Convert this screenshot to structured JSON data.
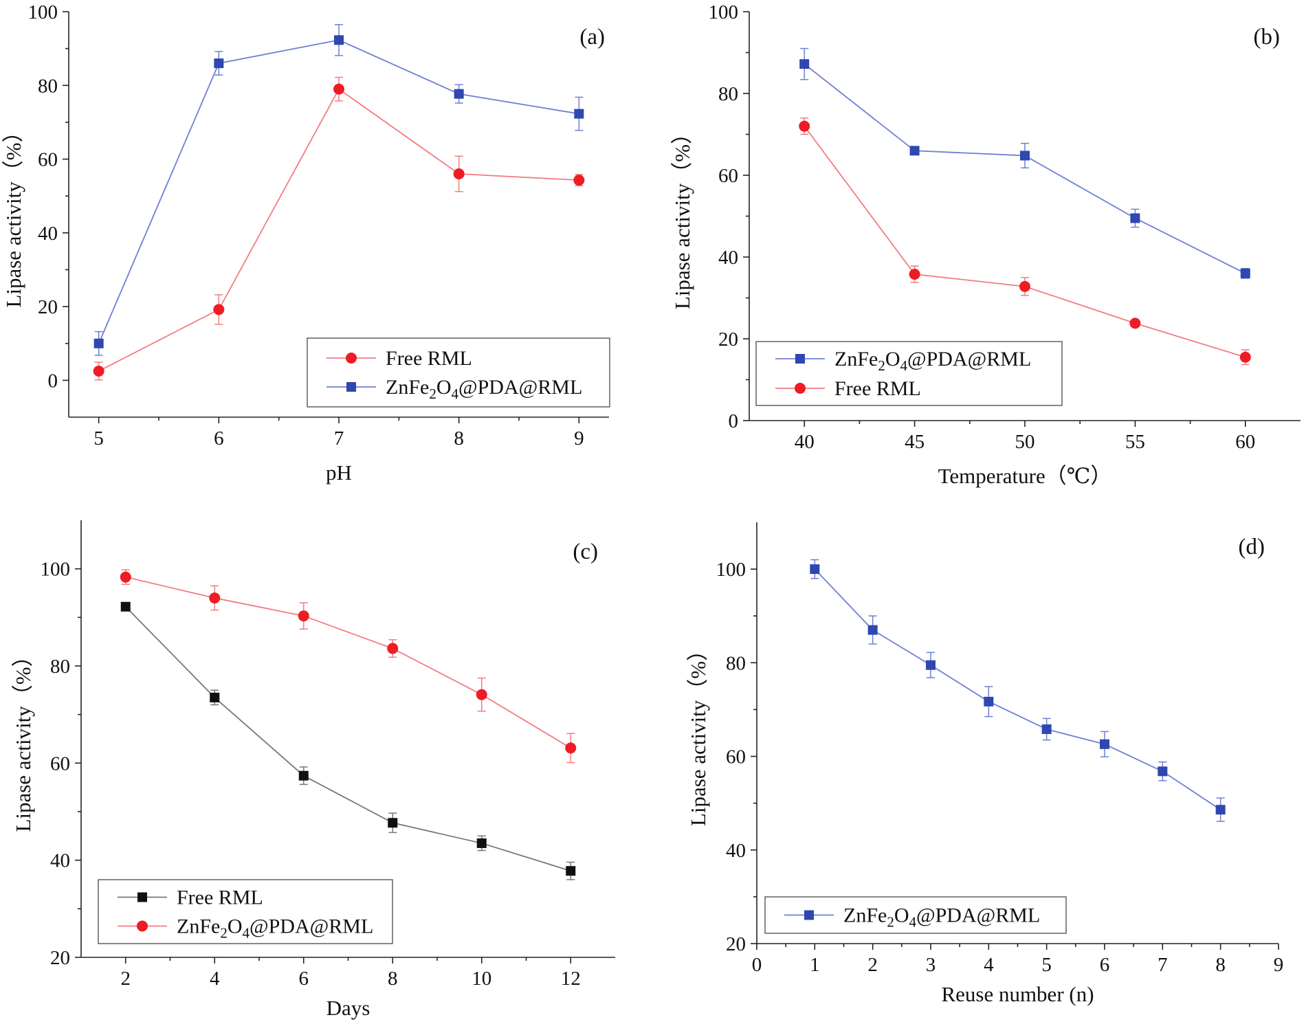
{
  "colors": {
    "blue": "#2f47b0",
    "red": "#ee1c24",
    "black": "#111111",
    "blue_line": "#6d7fd6",
    "red_line": "#f37b80",
    "black_line": "#777777"
  },
  "chart_data": [
    {
      "panel": "(a)",
      "type": "line",
      "xlabel": "pH",
      "ylabel": "Lipase activity（%）",
      "xlim": [
        4.75,
        9.25
      ],
      "ylim": [
        -10,
        100
      ],
      "xticks": [
        5,
        6,
        7,
        8,
        9
      ],
      "yticks": [
        0,
        20,
        40,
        60,
        80,
        100
      ],
      "legend_position": "bottom-right",
      "legend_order": [
        0,
        1
      ],
      "series": [
        {
          "name": "Free RML",
          "color": "red",
          "marker": "circle",
          "x": [
            5,
            6,
            7,
            8,
            9
          ],
          "y": [
            2.5,
            19.2,
            79.0,
            56.0,
            54.3
          ],
          "err": [
            2.4,
            4.0,
            3.2,
            4.8,
            1.5
          ]
        },
        {
          "name": "ZnFe2O4@PDA@RML",
          "color": "blue",
          "marker": "square",
          "x": [
            5,
            6,
            7,
            8,
            9
          ],
          "y": [
            10.0,
            86.0,
            92.3,
            77.7,
            72.3
          ],
          "err": [
            3.2,
            3.2,
            4.2,
            2.5,
            4.5
          ]
        }
      ]
    },
    {
      "panel": "(b)",
      "type": "line",
      "xlabel": "Temperature（℃）",
      "ylabel": "Lipase activity（%）",
      "xlim": [
        37.5,
        62.5
      ],
      "ylim": [
        0,
        100
      ],
      "xticks": [
        40,
        45,
        50,
        55,
        60
      ],
      "yticks": [
        0,
        20,
        40,
        60,
        80,
        100
      ],
      "legend_position": "bottom-left",
      "legend_order": [
        0,
        1
      ],
      "series": [
        {
          "name": "ZnFe2O4@PDA@RML",
          "color": "blue",
          "marker": "square",
          "x": [
            40,
            45,
            50,
            55,
            60
          ],
          "y": [
            87.2,
            66.0,
            64.8,
            49.5,
            36.0
          ],
          "err": [
            3.8,
            1.0,
            3.0,
            2.2,
            1.2
          ]
        },
        {
          "name": "Free RML",
          "color": "red",
          "marker": "circle",
          "x": [
            40,
            45,
            50,
            55,
            60
          ],
          "y": [
            72.0,
            35.8,
            32.8,
            23.8,
            15.5
          ],
          "err": [
            2.0,
            2.0,
            2.2,
            0.7,
            1.8
          ]
        }
      ]
    },
    {
      "panel": "(c)",
      "type": "line",
      "xlabel": "Days",
      "ylabel": "Lipase activity（%）",
      "xlim": [
        1,
        13
      ],
      "ylim": [
        20,
        110
      ],
      "xticks": [
        2,
        4,
        6,
        8,
        10,
        12
      ],
      "yticks": [
        20,
        40,
        60,
        80,
        100
      ],
      "legend_position": "bottom-left",
      "legend_order": [
        0,
        1
      ],
      "series": [
        {
          "name": "Free RML",
          "color": "black",
          "marker": "square",
          "x": [
            2,
            4,
            6,
            8,
            10,
            12
          ],
          "y": [
            92.2,
            73.5,
            57.4,
            47.7,
            43.5,
            37.8
          ],
          "err": [
            0.6,
            1.5,
            1.8,
            2.0,
            1.5,
            1.8
          ]
        },
        {
          "name": "ZnFe2O4@PDA@RML",
          "color": "red",
          "marker": "circle",
          "x": [
            2,
            4,
            6,
            8,
            10,
            12
          ],
          "y": [
            98.3,
            94.0,
            90.3,
            83.6,
            74.1,
            63.1
          ],
          "err": [
            1.5,
            2.5,
            2.7,
            1.8,
            3.4,
            3.0
          ]
        }
      ]
    },
    {
      "panel": "(d)",
      "type": "line",
      "xlabel": "Reuse number (n)",
      "ylabel": "Lipase activity（%）",
      "xlim": [
        0,
        9
      ],
      "ylim": [
        20,
        110
      ],
      "xticks": [
        0,
        1,
        2,
        3,
        4,
        5,
        6,
        7,
        8,
        9
      ],
      "yticks": [
        20,
        40,
        60,
        80,
        100
      ],
      "legend_position": "bottom-left",
      "legend_order": [
        0
      ],
      "series": [
        {
          "name": "ZnFe2O4@PDA@RML",
          "color": "blue",
          "marker": "square",
          "x": [
            1,
            2,
            3,
            4,
            5,
            6,
            7,
            8
          ],
          "y": [
            100.0,
            87.0,
            79.5,
            71.7,
            65.8,
            62.6,
            56.8,
            48.6
          ],
          "err": [
            2.0,
            3.0,
            2.7,
            3.2,
            2.3,
            2.7,
            2.0,
            2.5
          ]
        }
      ]
    }
  ]
}
